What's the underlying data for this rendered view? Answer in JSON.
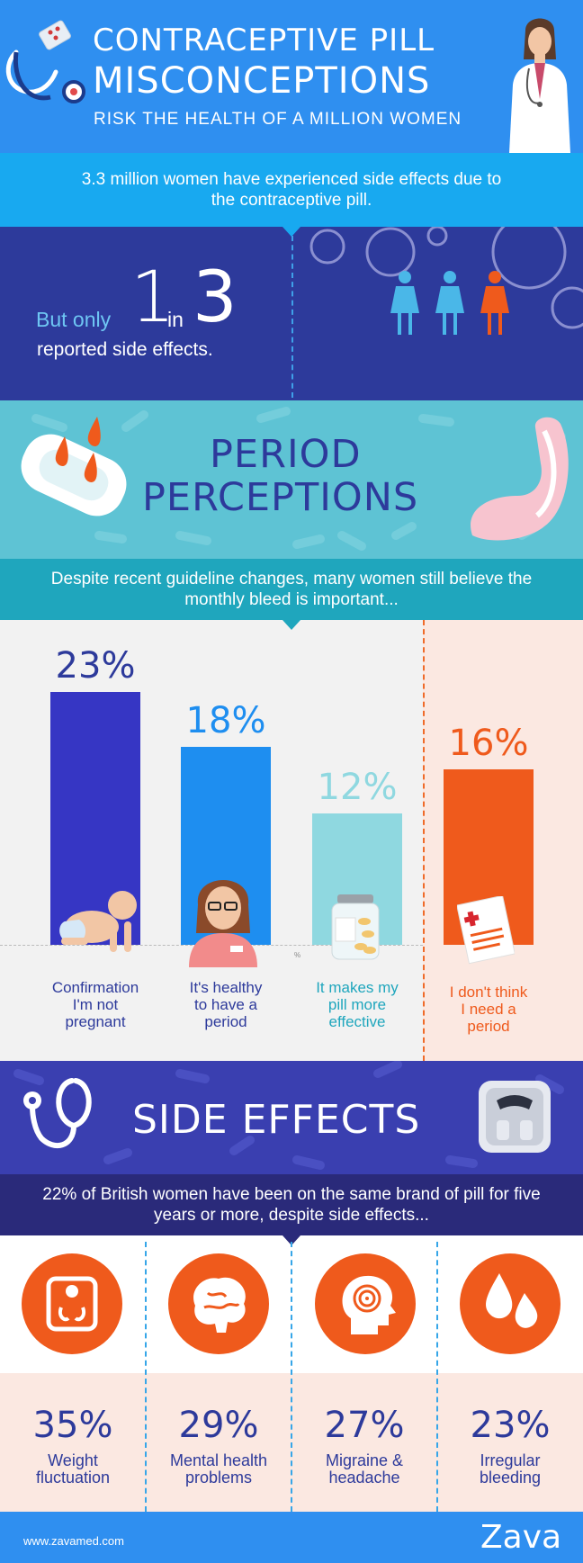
{
  "header": {
    "title_line1": "CONTRACEPTIVE PILL",
    "title_line2": "MISCONCEPTIONS",
    "subtitle": "RISK THE HEALTH OF A MILLION WOMEN"
  },
  "intro": {
    "text": "3.3 million women have experienced side effects due to the contraceptive pill."
  },
  "stat": {
    "but_only": "But only",
    "one": "1",
    "in_word": "in",
    "three": "3",
    "reported": "reported side effects."
  },
  "period": {
    "title_line1": "PERIOD",
    "title_line2": "PERCEPTIONS",
    "banner": "Despite recent guideline changes, many women still believe the monthly bleed is important..."
  },
  "chart_data": {
    "type": "bar",
    "categories": [
      "Confirmation I'm not pregnant",
      "It's healthy to have a period",
      "It makes my pill more effective",
      "I don't think I need a period"
    ],
    "values": [
      23,
      18,
      12,
      16
    ],
    "value_labels": [
      "23%",
      "18%",
      "12%",
      "16%"
    ],
    "label_lines": [
      [
        "Confirmation",
        "I'm not",
        "pregnant"
      ],
      [
        "It's healthy",
        "to have a",
        "period"
      ],
      [
        "It makes my",
        "pill more",
        "effective"
      ],
      [
        "I don't think",
        "I need a",
        "period"
      ]
    ],
    "colors": [
      "#3636c4",
      "#1e8ef0",
      "#8fd8e0",
      "#ef5a1c"
    ],
    "label_colors": [
      "#2d3a9b",
      "#2d3a9b",
      "#1fa6bd",
      "#ef5a1c"
    ],
    "pct_colors": [
      "#2d3a9b",
      "#1e8ef0",
      "#8fd8e0",
      "#ef5a1c"
    ],
    "stray_mark": "%"
  },
  "side_effects": {
    "title": "SIDE EFFECTS",
    "banner": "22% of British women have been on the same brand of pill for five years or more, despite side effects...",
    "items": [
      {
        "pct": "35%",
        "line1": "Weight",
        "line2": "fluctuation",
        "icon": "scale-icon"
      },
      {
        "pct": "29%",
        "line1": "Mental health",
        "line2": "problems",
        "icon": "brain-icon"
      },
      {
        "pct": "27%",
        "line1": "Migraine &",
        "line2": "headache",
        "icon": "head-spiral-icon"
      },
      {
        "pct": "23%",
        "line1": "Irregular",
        "line2": "bleeding",
        "icon": "drops-icon"
      }
    ]
  },
  "footer": {
    "url": "www.zavamed.com",
    "brand": "Zava"
  },
  "colors": {
    "header_blue": "#2f8ff0",
    "sky_blue": "#18a9f0",
    "navy": "#2d3a9b",
    "teal": "#5ec3d4",
    "orange": "#ef5a1c",
    "peach": "#fbe8e1"
  }
}
